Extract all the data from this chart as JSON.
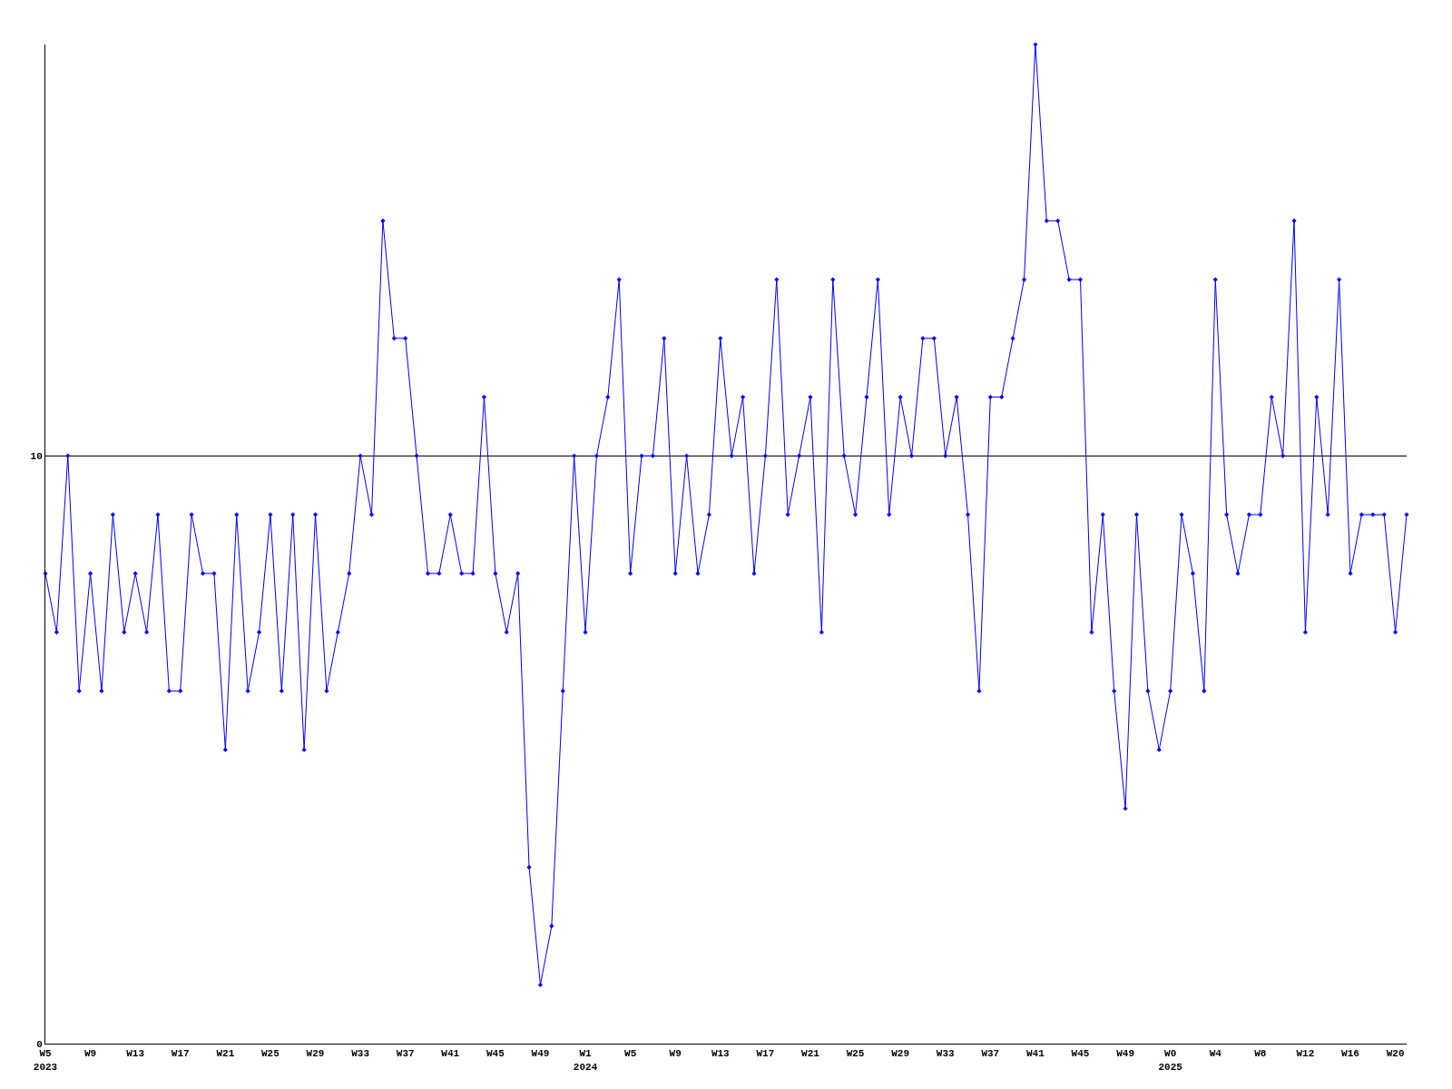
{
  "chart_data": {
    "type": "line",
    "categories": [
      "W5\n2023",
      null,
      null,
      null,
      "W9",
      null,
      null,
      null,
      "W13",
      null,
      null,
      null,
      "W17",
      null,
      null,
      null,
      "W21",
      null,
      null,
      null,
      "W25",
      null,
      null,
      null,
      "W29",
      null,
      null,
      null,
      "W33",
      null,
      null,
      null,
      "W37",
      null,
      null,
      null,
      "W41",
      null,
      null,
      null,
      "W45",
      null,
      null,
      null,
      "W49",
      null,
      null,
      null,
      "W1\n2024",
      null,
      null,
      null,
      "W5",
      null,
      null,
      null,
      "W9",
      null,
      null,
      null,
      "W13",
      null,
      null,
      null,
      "W17",
      null,
      null,
      null,
      "W21",
      null,
      null,
      null,
      "W25",
      null,
      null,
      null,
      "W29",
      null,
      null,
      null,
      "W33",
      null,
      null,
      null,
      "W37",
      null,
      null,
      null,
      "W41",
      null,
      null,
      null,
      "W45",
      null,
      null,
      null,
      "W49",
      null,
      null,
      null,
      "W0\n2025",
      null,
      null,
      null,
      "W4",
      null,
      null,
      null,
      "W8",
      null,
      null,
      null,
      "W12",
      null,
      null,
      null,
      "W16",
      null,
      null,
      null,
      "W20",
      null
    ],
    "series": [
      {
        "color": "#0000ff",
        "values": [
          8,
          7,
          10,
          6,
          8,
          6,
          9,
          7,
          8,
          7,
          9,
          6,
          6,
          9,
          8,
          8,
          5,
          9,
          6,
          7,
          9,
          6,
          9,
          5,
          9,
          6,
          7,
          8,
          10,
          9,
          14,
          12,
          12,
          10,
          8,
          8,
          9,
          8,
          8,
          11,
          8,
          7,
          8,
          3,
          1,
          2,
          6,
          10,
          7,
          10,
          11,
          13,
          8,
          10,
          10,
          12,
          8,
          10,
          8,
          9,
          12,
          10,
          11,
          8,
          10,
          13,
          9,
          10,
          11,
          7,
          13,
          10,
          9,
          11,
          13,
          9,
          11,
          10,
          12,
          12,
          10,
          11,
          9,
          6,
          11,
          11,
          12,
          13,
          17,
          14,
          14,
          13,
          13,
          7,
          9,
          6,
          4,
          9,
          6,
          5,
          6,
          9,
          8,
          6,
          13,
          9,
          8,
          9,
          9,
          11,
          10,
          14,
          7,
          11,
          9,
          13,
          8,
          9,
          9,
          9,
          7,
          9
        ]
      }
    ],
    "ylim": [
      0,
      17
    ],
    "yticks": [
      0,
      10
    ],
    "grid": "y",
    "marker": "diamond",
    "line_style": "solid"
  }
}
